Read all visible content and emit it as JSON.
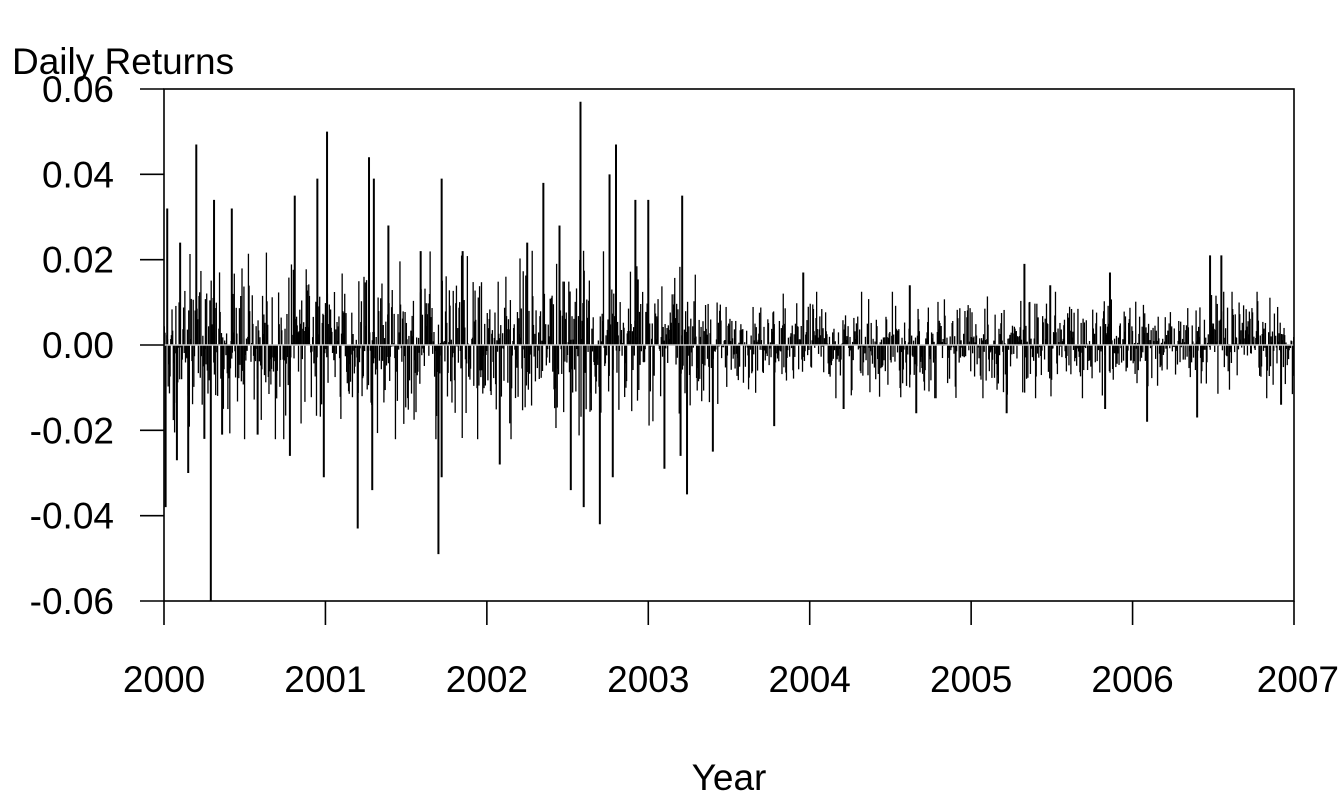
{
  "chart_data": {
    "type": "line",
    "render_style": "vertical-spikes",
    "title": "",
    "ylabel": "Daily Returns",
    "xlabel": "Year",
    "xlim": [
      2000,
      2007
    ],
    "ylim": [
      -0.06,
      0.06
    ],
    "x_ticks": [
      {
        "value": 2000,
        "label": "2000"
      },
      {
        "value": 2001,
        "label": "2001"
      },
      {
        "value": 2002,
        "label": "2002"
      },
      {
        "value": 2003,
        "label": "2003"
      },
      {
        "value": 2004,
        "label": "2004"
      },
      {
        "value": 2005,
        "label": "2005"
      },
      {
        "value": 2006,
        "label": "2006"
      },
      {
        "value": 2007,
        "label": "2007"
      }
    ],
    "y_ticks": [
      {
        "value": 0.06,
        "label": "0.06"
      },
      {
        "value": 0.04,
        "label": "0.04"
      },
      {
        "value": 0.02,
        "label": "0.02"
      },
      {
        "value": 0.0,
        "label": "0.00"
      },
      {
        "value": -0.02,
        "label": "-0.02"
      },
      {
        "value": -0.04,
        "label": "-0.04"
      },
      {
        "value": -0.06,
        "label": "-0.06"
      }
    ],
    "zero_line": true,
    "grid": false,
    "legend": "none",
    "series": [
      {
        "color": "#000000",
        "points": [
          {
            "x": 2000.02,
            "y": 0.032
          },
          {
            "x": 2000.01,
            "y": -0.038
          },
          {
            "x": 2000.08,
            "y": -0.027
          },
          {
            "x": 2000.1,
            "y": 0.024
          },
          {
            "x": 2000.15,
            "y": -0.03
          },
          {
            "x": 2000.2,
            "y": 0.047
          },
          {
            "x": 2000.25,
            "y": -0.022
          },
          {
            "x": 2000.29,
            "y": -0.06
          },
          {
            "x": 2000.31,
            "y": 0.034
          },
          {
            "x": 2000.36,
            "y": -0.021
          },
          {
            "x": 2000.42,
            "y": 0.032
          },
          {
            "x": 2000.58,
            "y": -0.021
          },
          {
            "x": 2000.78,
            "y": -0.026
          },
          {
            "x": 2000.81,
            "y": 0.035
          },
          {
            "x": 2000.95,
            "y": 0.039
          },
          {
            "x": 2000.99,
            "y": -0.031
          },
          {
            "x": 2001.01,
            "y": 0.05
          },
          {
            "x": 2001.2,
            "y": -0.043
          },
          {
            "x": 2001.27,
            "y": 0.044
          },
          {
            "x": 2001.29,
            "y": -0.034
          },
          {
            "x": 2001.3,
            "y": 0.039
          },
          {
            "x": 2001.39,
            "y": 0.028
          },
          {
            "x": 2001.59,
            "y": 0.022
          },
          {
            "x": 2001.7,
            "y": -0.049
          },
          {
            "x": 2001.72,
            "y": 0.039
          },
          {
            "x": 2001.72,
            "y": -0.031
          },
          {
            "x": 2001.85,
            "y": 0.022
          },
          {
            "x": 2002.08,
            "y": -0.028
          },
          {
            "x": 2002.25,
            "y": 0.024
          },
          {
            "x": 2002.35,
            "y": 0.038
          },
          {
            "x": 2002.45,
            "y": 0.028
          },
          {
            "x": 2002.52,
            "y": -0.034
          },
          {
            "x": 2002.58,
            "y": 0.057
          },
          {
            "x": 2002.6,
            "y": -0.038
          },
          {
            "x": 2002.7,
            "y": -0.042
          },
          {
            "x": 2002.76,
            "y": 0.04
          },
          {
            "x": 2002.78,
            "y": -0.031
          },
          {
            "x": 2002.8,
            "y": 0.047
          },
          {
            "x": 2002.92,
            "y": 0.034
          },
          {
            "x": 2003.0,
            "y": 0.034
          },
          {
            "x": 2003.1,
            "y": -0.029
          },
          {
            "x": 2003.2,
            "y": -0.026
          },
          {
            "x": 2003.21,
            "y": 0.035
          },
          {
            "x": 2003.24,
            "y": -0.035
          },
          {
            "x": 2003.4,
            "y": -0.025
          },
          {
            "x": 2003.78,
            "y": -0.019
          },
          {
            "x": 2003.96,
            "y": 0.017
          },
          {
            "x": 2004.21,
            "y": -0.015
          },
          {
            "x": 2004.62,
            "y": 0.014
          },
          {
            "x": 2004.66,
            "y": -0.016
          },
          {
            "x": 2005.22,
            "y": -0.016
          },
          {
            "x": 2005.33,
            "y": 0.019
          },
          {
            "x": 2005.49,
            "y": 0.014
          },
          {
            "x": 2005.83,
            "y": -0.015
          },
          {
            "x": 2005.86,
            "y": 0.017
          },
          {
            "x": 2006.09,
            "y": -0.018
          },
          {
            "x": 2006.4,
            "y": -0.017
          },
          {
            "x": 2006.48,
            "y": 0.021
          },
          {
            "x": 2006.55,
            "y": 0.021
          },
          {
            "x": 2006.92,
            "y": -0.014
          }
        ]
      }
    ]
  }
}
